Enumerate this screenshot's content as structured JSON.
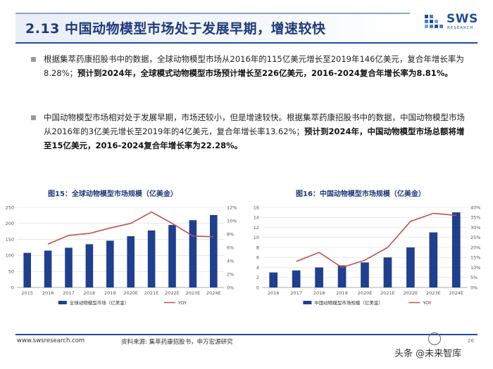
{
  "header": {
    "title": "2.13 中国动物模型市场处于发展早期，增速较快",
    "logo_text": "SWS",
    "logo_sub": "RESEARCH"
  },
  "bullets": [
    {
      "plain": "根据集萃药康招股书中的数据，全球动物模型市场从2016年的115亿美元增长至2019年146亿美元，复合年增长率为8.28%；",
      "bold": "预计到2024年，全球模式动物模型市场预计增长至226亿美元，2016-2024复合年增长率为8.81%。"
    },
    {
      "plain": "中国动物模型市场相对处于发展早期，市场还较小，但是增速较快。根据集萃药康招股书中的数据，中国动物模型市场从2016年的3亿美元增长至2019年的4亿美元，复合年增长率13.62%；",
      "bold": "预计到2024年，中国动物模型市场总额将增至15亿美元，2016-2024复合年增长率为22.28%。"
    }
  ],
  "chart_data": [
    {
      "type": "bar",
      "title": "图15：全球动物模型市场规模（亿美金）",
      "categories": [
        "2015",
        "2016",
        "2017",
        "2018",
        "2019",
        "2020E",
        "2021E",
        "2022E",
        "2023E",
        "2024E"
      ],
      "series": [
        {
          "name": "全球动物模型市场（亿美金）",
          "type": "bar",
          "axis": "left",
          "color": "#1f3f8f",
          "values": [
            108,
            115,
            124,
            135,
            146,
            160,
            178,
            195,
            210,
            226
          ]
        },
        {
          "name": "YOY",
          "type": "line",
          "axis": "right",
          "color": "#c0504d",
          "values": [
            null,
            6.5,
            7.8,
            8.1,
            8.9,
            9.6,
            11.3,
            9.6,
            7.7,
            7.6
          ]
        }
      ],
      "ylim_left": [
        0,
        250
      ],
      "yticks_left": [
        "0",
        "50",
        "100",
        "150",
        "200",
        "250"
      ],
      "ylim_right": [
        0,
        12
      ],
      "yticks_right": [
        "0%",
        "2%",
        "4%",
        "6%",
        "8%",
        "10%",
        "12%"
      ],
      "legend_position": "bottom"
    },
    {
      "type": "bar",
      "title": "图16：中国动物模型市场规模（亿美金）",
      "categories": [
        "2016",
        "2017",
        "2018",
        "2019",
        "2020E",
        "2021E",
        "2022E",
        "2023E",
        "2024E"
      ],
      "series": [
        {
          "name": "中国动物模型市场规模（亿美金）",
          "type": "bar",
          "axis": "left",
          "color": "#1f3f8f",
          "values": [
            3,
            3.4,
            4,
            4.4,
            5,
            6,
            8,
            11,
            15
          ]
        },
        {
          "name": "YOY",
          "type": "line",
          "axis": "right",
          "color": "#c0504d",
          "values": [
            null,
            13,
            17.5,
            10,
            13.6,
            20,
            33,
            37,
            36
          ]
        }
      ],
      "ylim_left": [
        0,
        16
      ],
      "yticks_left": [
        "0",
        "2",
        "4",
        "6",
        "8",
        "10",
        "12",
        "14",
        "16"
      ],
      "ylim_right": [
        0,
        40
      ],
      "yticks_right": [
        "0%",
        "5%",
        "10%",
        "15%",
        "20%",
        "25%",
        "30%",
        "35%",
        "40%"
      ],
      "legend_position": "bottom"
    }
  ],
  "footer": {
    "url": "www.swsresearch.com",
    "source": "资料来源: 集萃药康招股书，申万宏源研究",
    "page": "26",
    "watermark": "头条 @未来智库"
  }
}
